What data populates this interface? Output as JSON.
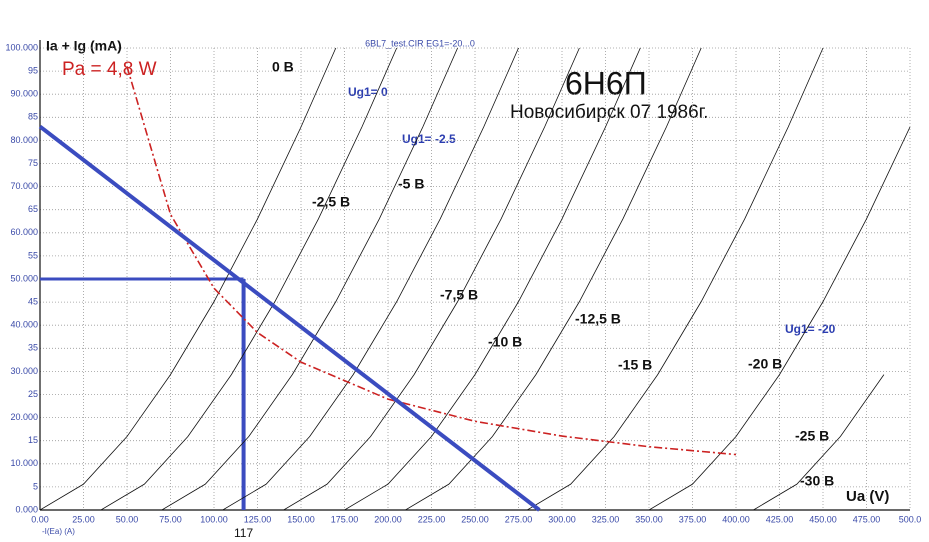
{
  "chart_data": {
    "type": "line",
    "title": "6BL7_test.CIR EG1=-20...0",
    "y_label": "Ia + Ig (mA)",
    "x_label": "Ua (V)",
    "probe_label": "-I(Ea) (A)",
    "annotations": [
      "6Н6П",
      "Новосибирск 07 1986г.",
      "Ug1= 0",
      "Ug1= -2.5",
      "Ug1= -20"
    ],
    "operating_point": {
      "x": 117,
      "y": 50
    },
    "xlim": [
      0,
      500
    ],
    "ylim": [
      0,
      100
    ],
    "grid": true,
    "xticks": [
      {
        "value": 0,
        "label": "0.00"
      },
      {
        "value": 25,
        "label": "25.00"
      },
      {
        "value": 50,
        "label": "50.00"
      },
      {
        "value": 75,
        "label": "75.00"
      },
      {
        "value": 100,
        "label": "100.00"
      },
      {
        "value": 125,
        "label": "125.00"
      },
      {
        "value": 150,
        "label": "150.00"
      },
      {
        "value": 175,
        "label": "175.00"
      },
      {
        "value": 200,
        "label": "200.00"
      },
      {
        "value": 225,
        "label": "225.00"
      },
      {
        "value": 250,
        "label": "250.00"
      },
      {
        "value": 275,
        "label": "275.00"
      },
      {
        "value": 300,
        "label": "300.00"
      },
      {
        "value": 325,
        "label": "325.00"
      },
      {
        "value": 350,
        "label": "350.00"
      },
      {
        "value": 375,
        "label": "375.00"
      },
      {
        "value": 400,
        "label": "400.00"
      },
      {
        "value": 425,
        "label": "425.00"
      },
      {
        "value": 450,
        "label": "450.00"
      },
      {
        "value": 475,
        "label": "475.00"
      },
      {
        "value": 500,
        "label": "500.0"
      }
    ],
    "yticks": [
      {
        "value": 0,
        "label": "0.000"
      },
      5,
      {
        "value": 10,
        "label": "10.000"
      },
      15,
      {
        "value": 20,
        "label": "20.000"
      },
      25,
      {
        "value": 30,
        "label": "30.000"
      },
      35,
      {
        "value": 40,
        "label": "40.000"
      },
      45,
      {
        "value": 50,
        "label": "50.000"
      },
      55,
      {
        "value": 60,
        "label": "60.000"
      },
      65,
      {
        "value": 70,
        "label": "70.000"
      },
      75,
      {
        "value": 80,
        "label": "80.000"
      },
      85,
      {
        "value": 90,
        "label": "90.000"
      },
      95,
      {
        "value": 100,
        "label": "100.000"
      }
    ],
    "series": [
      {
        "name": "0 В",
        "color": "#111111",
        "x": [
          0,
          25,
          50,
          75,
          100,
          125,
          150,
          170
        ],
        "values": [
          0,
          5.6,
          15.9,
          29.3,
          45.1,
          63.0,
          82.9,
          100
        ]
      },
      {
        "name": "-2,5 В",
        "color": "#111111",
        "x": [
          35,
          60,
          85,
          110,
          135,
          160,
          185,
          205
        ],
        "values": [
          0,
          5.6,
          15.9,
          29.3,
          45.1,
          63.0,
          82.9,
          100
        ]
      },
      {
        "name": "-5 В",
        "color": "#111111",
        "x": [
          70,
          95,
          120,
          145,
          170,
          195,
          220,
          240
        ],
        "values": [
          0,
          5.6,
          15.9,
          29.3,
          45.1,
          63.0,
          82.9,
          100
        ]
      },
      {
        "name": "-7,5 В",
        "color": "#111111",
        "x": [
          105,
          130,
          155,
          180,
          205,
          230,
          255,
          275
        ],
        "values": [
          0,
          5.6,
          15.9,
          29.3,
          45.1,
          63.0,
          82.9,
          100
        ]
      },
      {
        "name": "-10 В",
        "color": "#111111",
        "x": [
          140,
          165,
          190,
          215,
          240,
          265,
          290,
          310
        ],
        "values": [
          0,
          5.6,
          15.9,
          29.3,
          45.1,
          63.0,
          82.9,
          100
        ]
      },
      {
        "name": "-12,5 В",
        "color": "#111111",
        "x": [
          175,
          200,
          225,
          250,
          275,
          300,
          325,
          345
        ],
        "values": [
          0,
          5.6,
          15.9,
          29.3,
          45.1,
          63.0,
          82.9,
          100
        ]
      },
      {
        "name": "-15 В",
        "color": "#111111",
        "x": [
          210,
          235,
          260,
          285,
          310,
          335,
          360,
          380
        ],
        "values": [
          0,
          5.6,
          15.9,
          29.3,
          45.1,
          63.0,
          82.9,
          100
        ]
      },
      {
        "name": "-20 В",
        "color": "#111111",
        "x": [
          280,
          305,
          330,
          355,
          380,
          405,
          430,
          450
        ],
        "values": [
          0,
          5.6,
          15.9,
          29.3,
          45.1,
          63.0,
          82.9,
          100
        ]
      },
      {
        "name": "-25 В",
        "color": "#111111",
        "x": [
          350,
          375,
          400,
          425,
          450,
          475,
          500
        ],
        "values": [
          0,
          5.6,
          15.9,
          29.3,
          45.1,
          63.0,
          82.9
        ]
      },
      {
        "name": "-30 В",
        "color": "#111111",
        "x": [
          410,
          435,
          460,
          485
        ],
        "values": [
          0,
          5.6,
          15.9,
          29.3
        ]
      },
      {
        "name": "Pa = 4,8  W",
        "color": "#cc2222",
        "dash": true,
        "x": [
          50,
          75,
          100,
          125,
          150,
          200,
          250,
          300,
          350,
          400
        ],
        "values": [
          96,
          64,
          48,
          38.4,
          32,
          24,
          19.2,
          16,
          13.7,
          12
        ]
      },
      {
        "color": "#3b4cc0",
        "width": 4,
        "x": [
          0,
          287
        ],
        "values": [
          83,
          0
        ]
      }
    ]
  }
}
